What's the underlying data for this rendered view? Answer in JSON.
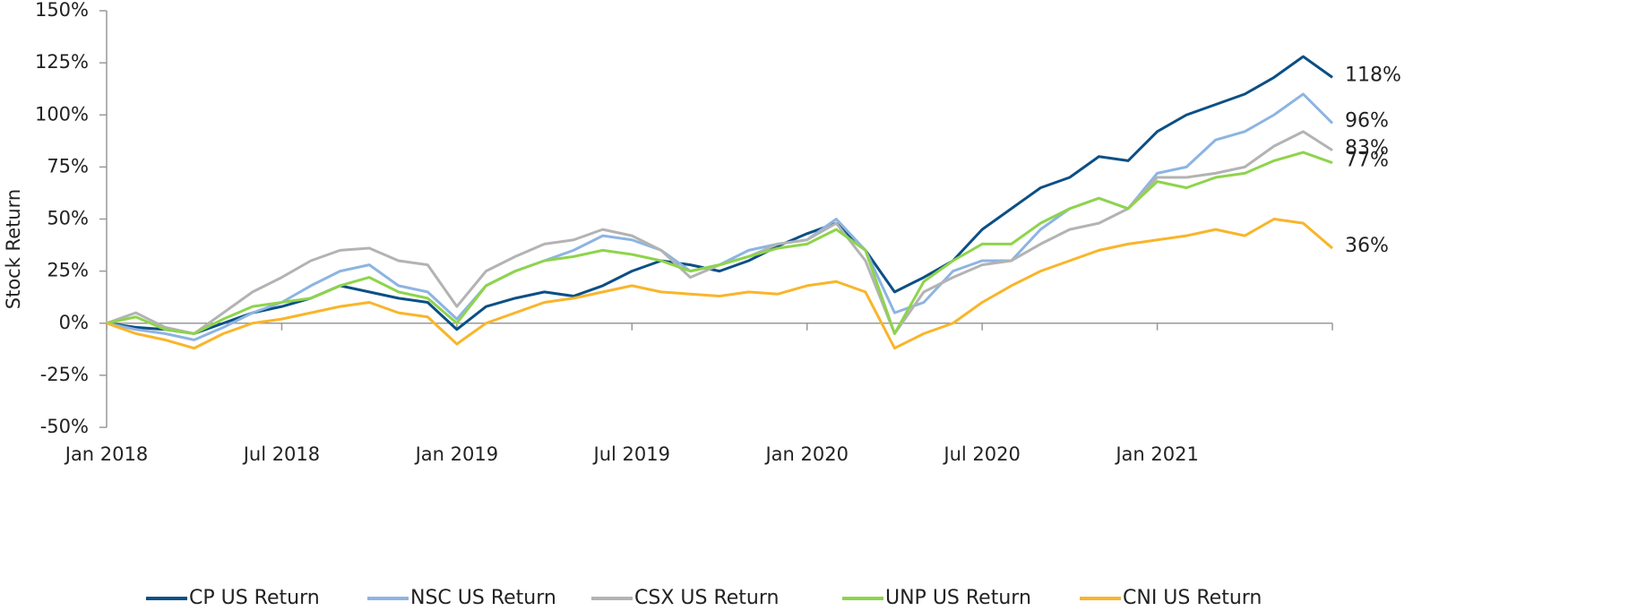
{
  "chart_data": {
    "type": "line",
    "y_label": "Stock Return",
    "x": [
      "2018-01",
      "2018-02",
      "2018-03",
      "2018-04",
      "2018-05",
      "2018-06",
      "2018-07",
      "2018-08",
      "2018-09",
      "2018-10",
      "2018-11",
      "2018-12",
      "2019-01",
      "2019-02",
      "2019-03",
      "2019-04",
      "2019-05",
      "2019-06",
      "2019-07",
      "2019-08",
      "2019-09",
      "2019-10",
      "2019-11",
      "2019-12",
      "2020-01",
      "2020-02",
      "2020-03",
      "2020-04",
      "2020-05",
      "2020-06",
      "2020-07",
      "2020-08",
      "2020-09",
      "2020-10",
      "2020-11",
      "2020-12",
      "2021-01",
      "2021-02",
      "2021-03",
      "2021-04",
      "2021-05",
      "2021-06",
      "2021-07"
    ],
    "xlim": [
      "2018-01",
      "2021-07"
    ],
    "xticks": [
      {
        "value": "2018-01",
        "label": "Jan 2018"
      },
      {
        "value": "2018-07",
        "label": "Jul 2018"
      },
      {
        "value": "2019-01",
        "label": "Jan 2019"
      },
      {
        "value": "2019-07",
        "label": "Jul 2019"
      },
      {
        "value": "2020-01",
        "label": "Jan 2020"
      },
      {
        "value": "2020-07",
        "label": "Jul 2020"
      },
      {
        "value": "2021-01",
        "label": "Jan 2021"
      }
    ],
    "ylim": [
      -50,
      150
    ],
    "yticks": [
      {
        "value": -50,
        "label": "-50%"
      },
      {
        "value": -25,
        "label": "-25%"
      },
      {
        "value": 0,
        "label": "0%"
      },
      {
        "value": 25,
        "label": "25%"
      },
      {
        "value": 50,
        "label": "50%"
      },
      {
        "value": 75,
        "label": "75%"
      },
      {
        "value": 100,
        "label": "100%"
      },
      {
        "value": 125,
        "label": "125%"
      },
      {
        "value": 150,
        "label": "150%"
      }
    ],
    "legend": "bottom",
    "series": [
      {
        "name": "CP US Return",
        "color": "#0b4f85",
        "end_label": "118%",
        "values": [
          0,
          -2,
          -3,
          -5,
          0,
          5,
          8,
          12,
          18,
          15,
          12,
          10,
          -3,
          8,
          12,
          15,
          13,
          18,
          25,
          30,
          28,
          25,
          30,
          37,
          43,
          48,
          35,
          15,
          22,
          30,
          45,
          55,
          65,
          70,
          80,
          78,
          92,
          100,
          105,
          110,
          118,
          128,
          118
        ]
      },
      {
        "name": "NSC US Return",
        "color": "#8db4e2",
        "end_label": "96%",
        "values": [
          0,
          -3,
          -5,
          -8,
          -2,
          5,
          10,
          18,
          25,
          28,
          18,
          15,
          2,
          18,
          25,
          30,
          35,
          42,
          40,
          35,
          25,
          28,
          35,
          38,
          40,
          50,
          35,
          5,
          10,
          25,
          30,
          30,
          45,
          55,
          60,
          55,
          72,
          75,
          88,
          92,
          100,
          110,
          96
        ]
      },
      {
        "name": "CSX US Return",
        "color": "#b3b3b3",
        "end_label": "83%",
        "values": [
          0,
          5,
          -2,
          -5,
          5,
          15,
          22,
          30,
          35,
          36,
          30,
          28,
          8,
          25,
          32,
          38,
          40,
          45,
          42,
          35,
          22,
          28,
          32,
          38,
          40,
          48,
          30,
          -5,
          15,
          22,
          28,
          30,
          38,
          45,
          48,
          55,
          70,
          70,
          72,
          75,
          85,
          92,
          83
        ]
      },
      {
        "name": "UNP US Return",
        "color": "#8ed44b",
        "end_label": "77%",
        "values": [
          0,
          3,
          -3,
          -5,
          2,
          8,
          10,
          12,
          18,
          22,
          15,
          12,
          0,
          18,
          25,
          30,
          32,
          35,
          33,
          30,
          25,
          28,
          32,
          36,
          38,
          45,
          35,
          -5,
          20,
          30,
          38,
          38,
          48,
          55,
          60,
          55,
          68,
          65,
          70,
          72,
          78,
          82,
          77
        ]
      },
      {
        "name": "CNI US Return",
        "color": "#f9b52a",
        "end_label": "36%",
        "values": [
          0,
          -5,
          -8,
          -12,
          -5,
          0,
          2,
          5,
          8,
          10,
          5,
          3,
          -10,
          0,
          5,
          10,
          12,
          15,
          18,
          15,
          14,
          13,
          15,
          14,
          18,
          20,
          15,
          -12,
          -5,
          0,
          10,
          18,
          25,
          30,
          35,
          38,
          40,
          42,
          45,
          42,
          50,
          48,
          36
        ]
      }
    ]
  }
}
